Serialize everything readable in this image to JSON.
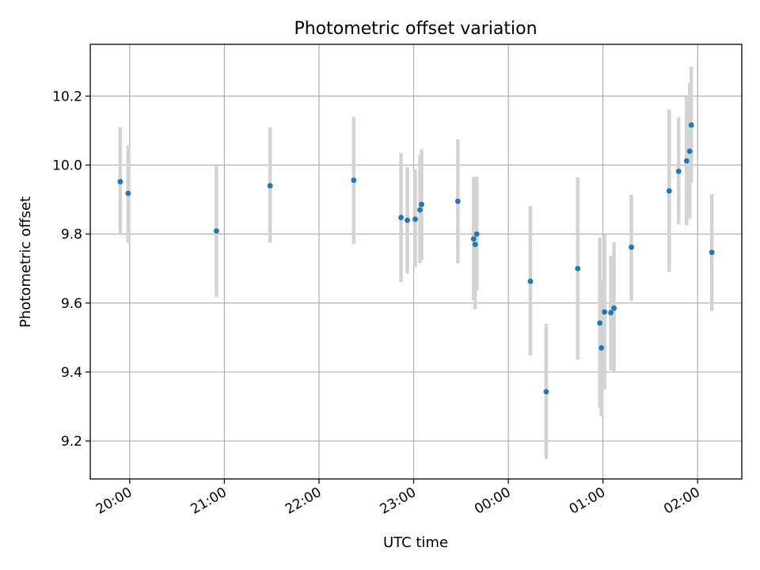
{
  "chart_data": {
    "type": "scatter",
    "title": "Photometric offset variation",
    "xlabel": "UTC time",
    "ylabel": "Photometric offset",
    "x_axis_kind": "time (minutes after 19:35 UTC, continuing past midnight)",
    "xlim": [
      "19:35",
      "02:28"
    ],
    "ylim": [
      9.09,
      10.35
    ],
    "grid": true,
    "x_ticks": [
      {
        "label": "20:00",
        "t": "20:00"
      },
      {
        "label": "21:00",
        "t": "21:00"
      },
      {
        "label": "22:00",
        "t": "22:00"
      },
      {
        "label": "23:00",
        "t": "23:00"
      },
      {
        "label": "00:00",
        "t": "00:00"
      },
      {
        "label": "01:00",
        "t": "01:00"
      },
      {
        "label": "02:00",
        "t": "02:00"
      }
    ],
    "y_ticks": [
      {
        "label": "9.2",
        "v": 9.2
      },
      {
        "label": "9.4",
        "v": 9.4
      },
      {
        "label": "9.6",
        "v": 9.6
      },
      {
        "label": "9.8",
        "v": 9.8
      },
      {
        "label": "10.0",
        "v": 10.0
      },
      {
        "label": "10.2",
        "v": 10.2
      }
    ],
    "colors": {
      "point": "#1f77b4",
      "errorbar": "#d3d3d3"
    },
    "points": [
      {
        "t": "19:54",
        "y": 9.952,
        "lo": 9.797,
        "hi": 10.11
      },
      {
        "t": "19:59",
        "y": 9.918,
        "lo": 9.775,
        "hi": 10.057
      },
      {
        "t": "20:55",
        "y": 9.809,
        "lo": 9.617,
        "hi": 9.998
      },
      {
        "t": "21:29",
        "y": 9.94,
        "lo": 9.775,
        "hi": 10.11
      },
      {
        "t": "22:22",
        "y": 9.956,
        "lo": 9.772,
        "hi": 10.14
      },
      {
        "t": "22:52",
        "y": 9.848,
        "lo": 9.661,
        "hi": 10.035
      },
      {
        "t": "22:56",
        "y": 9.84,
        "lo": 9.686,
        "hi": 9.994
      },
      {
        "t": "23:01",
        "y": 9.843,
        "lo": 9.704,
        "hi": 9.987
      },
      {
        "t": "23:04",
        "y": 9.87,
        "lo": 9.716,
        "hi": 10.028
      },
      {
        "t": "23:05",
        "y": 9.886,
        "lo": 9.725,
        "hi": 10.046
      },
      {
        "t": "23:28",
        "y": 9.895,
        "lo": 9.715,
        "hi": 10.075
      },
      {
        "t": "23:38",
        "y": 9.786,
        "lo": 9.608,
        "hi": 9.966
      },
      {
        "t": "23:39",
        "y": 9.77,
        "lo": 9.583,
        "hi": 9.966
      },
      {
        "t": "23:40",
        "y": 9.8,
        "lo": 9.637,
        "hi": 9.966
      },
      {
        "t": "00:14",
        "y": 9.663,
        "lo": 9.448,
        "hi": 9.881
      },
      {
        "t": "00:24",
        "y": 9.343,
        "lo": 9.148,
        "hi": 9.54
      },
      {
        "t": "00:44",
        "y": 9.7,
        "lo": 9.436,
        "hi": 9.964
      },
      {
        "t": "00:58",
        "y": 9.542,
        "lo": 9.297,
        "hi": 9.79
      },
      {
        "t": "00:59",
        "y": 9.47,
        "lo": 9.272,
        "hi": 9.667
      },
      {
        "t": "01:01",
        "y": 9.574,
        "lo": 9.35,
        "hi": 9.798
      },
      {
        "t": "01:05",
        "y": 9.572,
        "lo": 9.405,
        "hi": 9.736
      },
      {
        "t": "01:07",
        "y": 9.585,
        "lo": 9.397,
        "hi": 9.776
      },
      {
        "t": "01:18",
        "y": 9.762,
        "lo": 9.606,
        "hi": 9.914
      },
      {
        "t": "01:42",
        "y": 9.925,
        "lo": 9.69,
        "hi": 10.161
      },
      {
        "t": "01:48",
        "y": 9.982,
        "lo": 9.828,
        "hi": 10.138
      },
      {
        "t": "01:53",
        "y": 10.012,
        "lo": 9.826,
        "hi": 10.198
      },
      {
        "t": "01:55",
        "y": 10.04,
        "lo": 9.845,
        "hi": 10.238
      },
      {
        "t": "01:56",
        "y": 10.116,
        "lo": 9.948,
        "hi": 10.285
      },
      {
        "t": "02:09",
        "y": 9.747,
        "lo": 9.577,
        "hi": 9.916
      }
    ]
  }
}
